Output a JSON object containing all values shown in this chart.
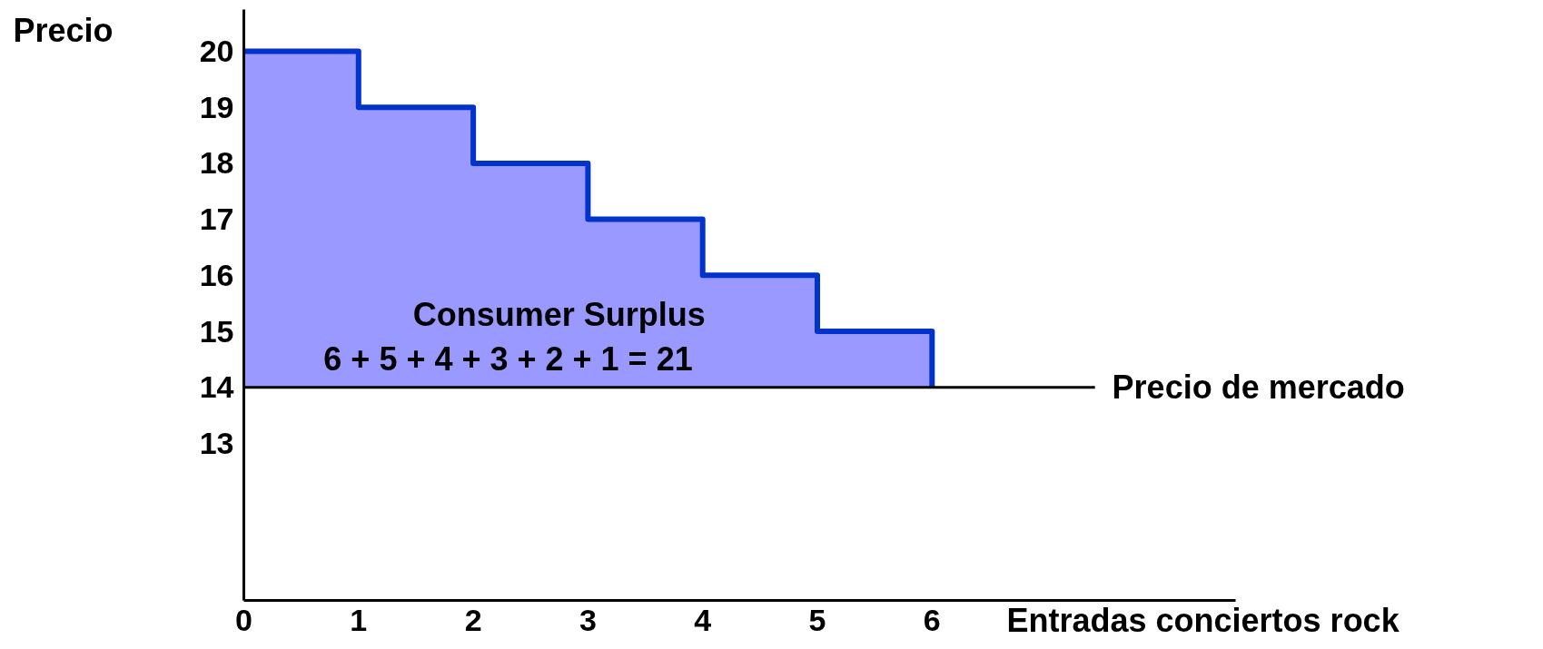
{
  "chart_data": {
    "type": "step",
    "xlabel": "Entradas conciertos rock",
    "ylabel": "Precio",
    "x": [
      0,
      1,
      2,
      3,
      4,
      5,
      6
    ],
    "series": [
      {
        "color": "#0033cc",
        "values": [
          20,
          19,
          18,
          17,
          16,
          15,
          14
        ]
      }
    ],
    "xlim": [
      0,
      8.65
    ],
    "ylim": [
      10.2,
      20.75
    ],
    "xticks": [
      0,
      1,
      2,
      3,
      4,
      5,
      6
    ],
    "yticks": [
      13,
      14,
      15,
      16,
      17,
      18,
      19,
      20
    ],
    "ref_lines": [
      {
        "axis": "y",
        "value": 14,
        "label": "Precio de mercado",
        "color": "#000000"
      }
    ],
    "annotations": [
      "Consumer Surplus",
      "6  + 5  +  4  +  3   +  2 + 1   = 21"
    ],
    "grid": false,
    "marker": "none",
    "line_style": "solid"
  }
}
